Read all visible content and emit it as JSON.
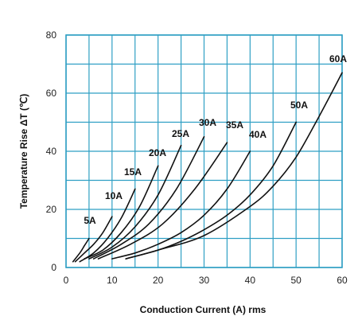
{
  "chart_data": {
    "type": "line",
    "xlabel": "Conduction Current (A) rms",
    "ylabel": "Temperature Rise ΔT (℃)",
    "xlim": [
      0,
      60
    ],
    "ylim": [
      0,
      80
    ],
    "x_ticks": [
      0,
      10,
      20,
      30,
      40,
      50,
      60
    ],
    "y_ticks": [
      0,
      20,
      40,
      60,
      80
    ],
    "x_minor_step": 5,
    "y_minor_step": 10,
    "grid": true,
    "grid_color": "#2f9fc4",
    "line_color": "#111111",
    "series": [
      {
        "name": "5A",
        "x": [
          1.5,
          3,
          4,
          5
        ],
        "y": [
          2,
          5,
          7.5,
          10
        ]
      },
      {
        "name": "10A",
        "x": [
          2,
          4,
          6,
          8,
          10
        ],
        "y": [
          2,
          5,
          8,
          12,
          17.5
        ]
      },
      {
        "name": "15A",
        "x": [
          3,
          6,
          9,
          12,
          15
        ],
        "y": [
          2,
          5,
          10,
          17,
          27
        ]
      },
      {
        "name": "20A",
        "x": [
          4,
          8,
          12,
          16,
          20
        ],
        "y": [
          3,
          6,
          12,
          21,
          35
        ]
      },
      {
        "name": "25A",
        "x": [
          5,
          10,
          15,
          20,
          25
        ],
        "y": [
          3,
          7,
          14,
          25,
          42
        ]
      },
      {
        "name": "30A",
        "x": [
          6,
          12,
          18,
          24,
          30
        ],
        "y": [
          3,
          8,
          15,
          27,
          45
        ]
      },
      {
        "name": "35A",
        "x": [
          7,
          14,
          21,
          28,
          35
        ],
        "y": [
          3,
          8,
          15,
          27,
          43
        ]
      },
      {
        "name": "40A",
        "x": [
          10,
          15,
          20,
          25,
          30,
          35,
          40
        ],
        "y": [
          3,
          5,
          8,
          12,
          18,
          27,
          40
        ]
      },
      {
        "name": "50A",
        "x": [
          13,
          20,
          25,
          30,
          35,
          40,
          45,
          50
        ],
        "y": [
          3,
          6,
          9,
          13,
          18,
          25,
          35,
          50
        ]
      },
      {
        "name": "60A",
        "x": [
          13,
          20,
          30,
          40,
          45,
          50,
          55,
          60
        ],
        "y": [
          3,
          6,
          11,
          21,
          28,
          38,
          52,
          67
        ]
      }
    ],
    "curve_labels": [
      {
        "text": "5A"
      },
      {
        "text": "10A"
      },
      {
        "text": "15A"
      },
      {
        "text": "20A"
      },
      {
        "text": "25A"
      },
      {
        "text": "30A"
      },
      {
        "text": "35A"
      },
      {
        "text": "40A"
      },
      {
        "text": "50A"
      },
      {
        "text": "60A"
      }
    ]
  }
}
